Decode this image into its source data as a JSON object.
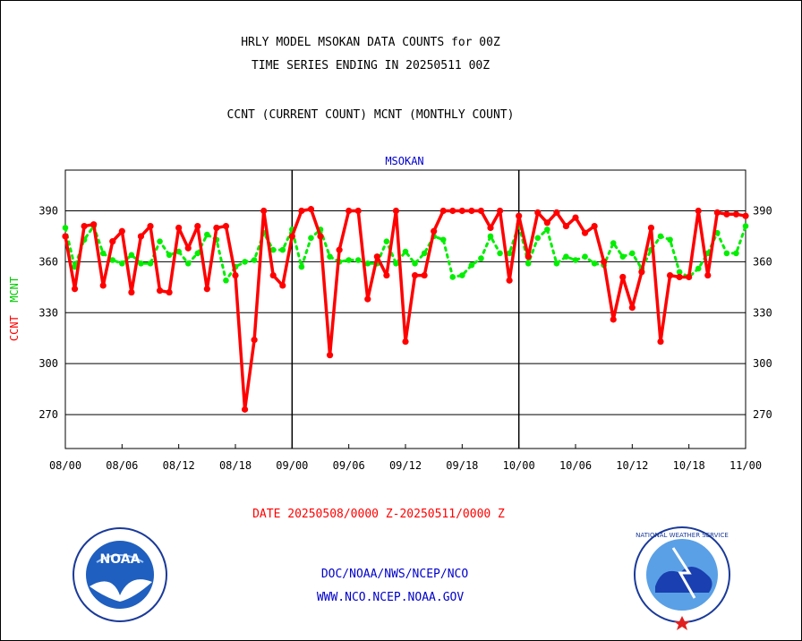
{
  "header": {
    "title_line1": "HRLY MODEL MSOKAN DATA COUNTS for 00Z",
    "title_line2": "TIME SERIES ENDING IN 20250511 00Z",
    "subtitle": "CCNT (CURRENT COUNT) MCNT (MONTHLY COUNT)"
  },
  "footer": {
    "date_range": "DATE 20250508/0000 Z-20250511/0000 Z",
    "org_line": "DOC/NOAA/NWS/NCEP/NCO",
    "website": "WWW.NCO.NCEP.NOAA.GOV"
  },
  "logos": {
    "noaa_text": "NOAA",
    "nws_text": "NATIONAL WEATHER SERVICE"
  },
  "colors": {
    "ccnt": "#ff0000",
    "mcnt": "#00ee00",
    "station_label": "#0000cc",
    "footer_blue": "#0000cc",
    "date_red": "#ff0000"
  },
  "chart_data": {
    "type": "line",
    "title": "MSOKAN",
    "ylabel_ccnt": "CCNT",
    "ylabel_mcnt": "MCNT",
    "ylim": [
      250,
      414
    ],
    "y_ticks": [
      270,
      300,
      330,
      360,
      390
    ],
    "x_tick_labels": [
      "08/00",
      "08/06",
      "08/12",
      "08/18",
      "09/00",
      "09/06",
      "09/12",
      "09/18",
      "10/00",
      "10/06",
      "10/12",
      "10/18",
      "11/00"
    ],
    "x_range_hours": [
      0,
      72
    ],
    "day_boundaries_hours": [
      24,
      48
    ],
    "grid": "horizontal",
    "series": [
      {
        "name": "CCNT",
        "style": "solid",
        "values": [
          375,
          344,
          381,
          382,
          346,
          372,
          378,
          342,
          375,
          381,
          343,
          342,
          380,
          368,
          381,
          344,
          380,
          381,
          352,
          273,
          314,
          390,
          352,
          346,
          375,
          390,
          391,
          375,
          305,
          367,
          390,
          390,
          338,
          363,
          352,
          390,
          313,
          352,
          352,
          378,
          390,
          390,
          390,
          390,
          390,
          380,
          390,
          349,
          387,
          363,
          389,
          383,
          389,
          381,
          386,
          377,
          381,
          360,
          326,
          351,
          333,
          354,
          380,
          313,
          352,
          351,
          351,
          390,
          352,
          389,
          388,
          388,
          387
        ]
      },
      {
        "name": "MCNT",
        "style": "dotted",
        "values": [
          380,
          357,
          373,
          381,
          365,
          361,
          359,
          364,
          359,
          359,
          372,
          364,
          366,
          359,
          365,
          376,
          373,
          349,
          357,
          360,
          361,
          377,
          367,
          367,
          379,
          357,
          374,
          379,
          363,
          360,
          361,
          361,
          359,
          359,
          372,
          359,
          366,
          359,
          365,
          375,
          373,
          351,
          352,
          358,
          362,
          375,
          365,
          365,
          382,
          359,
          374,
          379,
          359,
          363,
          361,
          363,
          359,
          358,
          371,
          363,
          365,
          356,
          367,
          375,
          373,
          354,
          351,
          356,
          365,
          377,
          365,
          365,
          381
        ]
      }
    ]
  }
}
